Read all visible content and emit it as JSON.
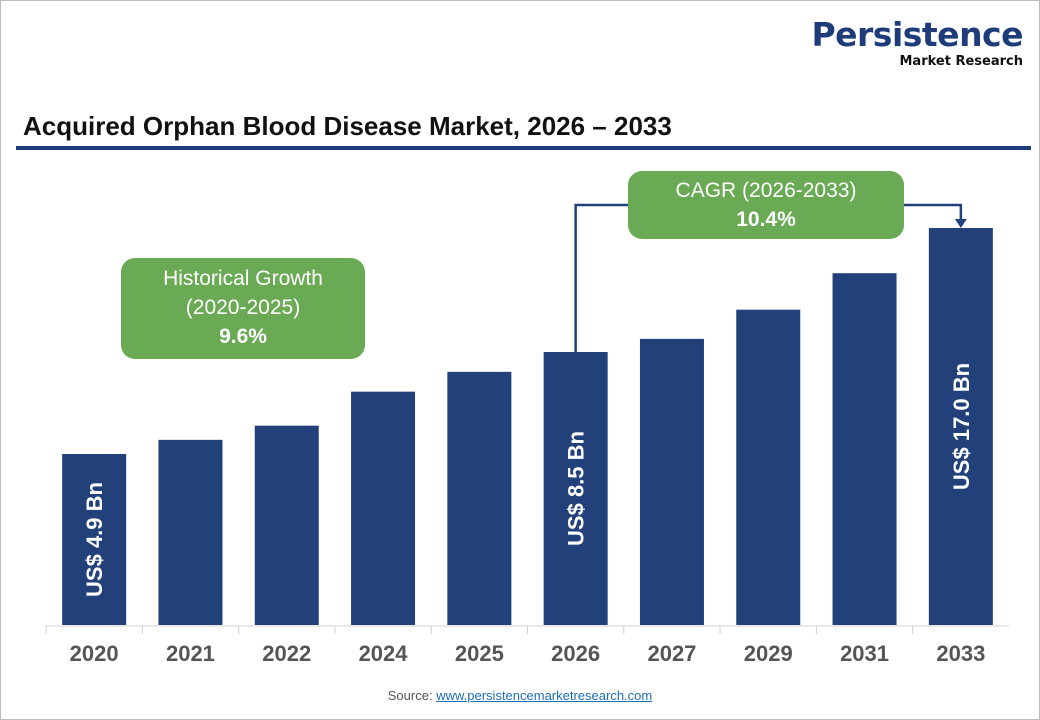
{
  "logo": {
    "name": "Persistence",
    "sub": "Market Research"
  },
  "source": {
    "label": "Source:",
    "link": "www.persistencemarketresearch.com"
  },
  "chart_data": {
    "type": "bar",
    "title": "Acquired Orphan Blood Disease Market, 2026 – 2033",
    "categories": [
      "2020",
      "2021",
      "2022",
      "2024",
      "2025",
      "2026",
      "2027",
      "2029",
      "2031",
      "2033"
    ],
    "values": [
      4.9,
      5.4,
      5.9,
      7.1,
      7.8,
      8.5,
      9.4,
      11.4,
      13.9,
      17.0
    ],
    "unit": "US$ Bn",
    "bar_labels": {
      "2020": "US$ 4.9 Bn",
      "2026": "US$ 8.5 Bn",
      "2033": "US$ 17.0 Bn"
    },
    "annotations": [
      {
        "line1": "Historical Growth",
        "line2": "(2020-2025)",
        "value": "9.6%"
      },
      {
        "line1": "CAGR (2026-2033)",
        "value": "10.4%"
      }
    ],
    "colors": {
      "bar": "#22407a",
      "annotation": "#6aaa55",
      "title_rule": "#1f3c7a"
    },
    "grid": false,
    "legend": "none"
  }
}
